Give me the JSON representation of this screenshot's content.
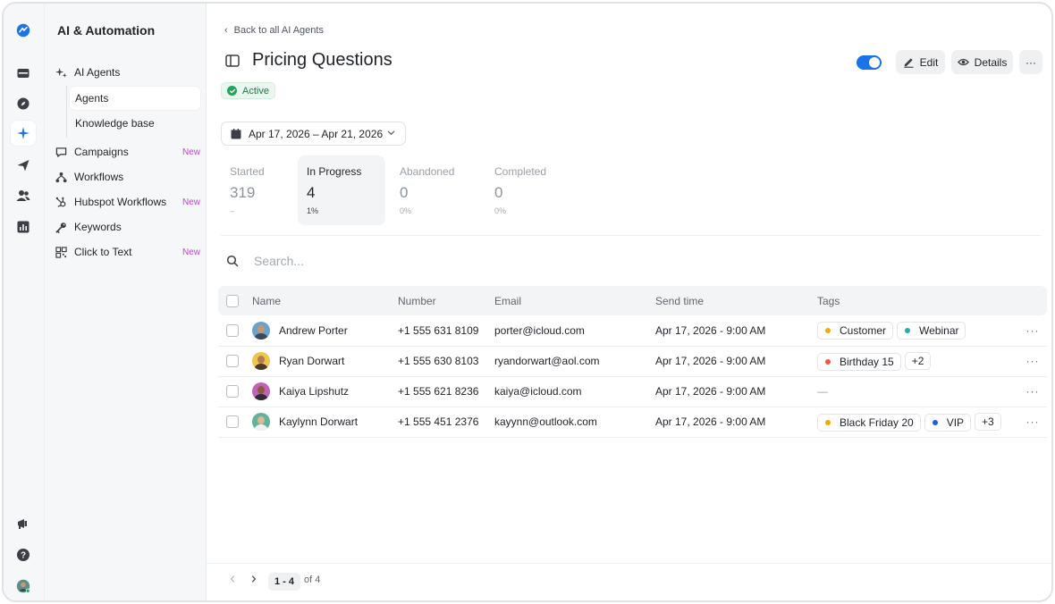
{
  "rail": {
    "items": [
      "logo",
      "inbox",
      "explore",
      "ai-automation",
      "campaigns",
      "contacts",
      "analytics"
    ],
    "bottom": [
      "announcements",
      "help",
      "profile"
    ]
  },
  "nav": {
    "title": "AI & Automation",
    "items": [
      {
        "label": "AI Agents"
      },
      {
        "label": "Agents"
      },
      {
        "label": "Knowledge base"
      },
      {
        "label": "Campaigns",
        "badge": "New"
      },
      {
        "label": "Workflows"
      },
      {
        "label": "Hubspot Workflows",
        "badge": "New"
      },
      {
        "label": "Keywords"
      },
      {
        "label": "Click to Text",
        "badge": "New"
      }
    ]
  },
  "header": {
    "back": "Back to all AI Agents",
    "title": "Pricing Questions",
    "status": "Active",
    "edit": "Edit",
    "details": "Details",
    "more": "···"
  },
  "filter": {
    "date_range": "Apr 17, 2026 – Apr 21, 2026"
  },
  "stats": [
    {
      "label": "Started",
      "value": "319",
      "sub": "–"
    },
    {
      "label": "In Progress",
      "value": "4",
      "sub": "1%"
    },
    {
      "label": "Abandoned",
      "value": "0",
      "sub": "0%"
    },
    {
      "label": "Completed",
      "value": "0",
      "sub": "0%"
    }
  ],
  "search": {
    "placeholder": "Search..."
  },
  "table": {
    "columns": [
      "Name",
      "Number",
      "Email",
      "Send time",
      "Tags"
    ],
    "rows": [
      {
        "name": "Andrew Porter",
        "number": "+1 555 631 8109",
        "email": "porter@icloud.com",
        "send_time": "Apr 17, 2026 - 9:00 AM",
        "tags": [
          {
            "label": "Customer",
            "color": "#f2a900"
          },
          {
            "label": "Webinar",
            "color": "#20b2aa"
          }
        ],
        "extra": ""
      },
      {
        "name": "Ryan Dorwart",
        "number": "+1 555 630 8103",
        "email": "ryandorwart@aol.com",
        "send_time": "Apr 17, 2026 - 9:00 AM",
        "tags": [
          {
            "label": "Birthday 15",
            "color": "#f0573b"
          }
        ],
        "extra": "+2"
      },
      {
        "name": "Kaiya Lipshutz",
        "number": "+1 555 621 8236",
        "email": "kaiya@icloud.com",
        "send_time": "Apr 17, 2026 - 9:00 AM",
        "tags": [],
        "extra": "—"
      },
      {
        "name": "Kaylynn Dorwart",
        "number": "+1 555 451 2376",
        "email": "kayynn@outlook.com",
        "send_time": "Apr 17, 2026 - 9:00 AM",
        "tags": [
          {
            "label": "Black Friday 20",
            "color": "#f2a900"
          },
          {
            "label": "VIP",
            "color": "#1a5fe8"
          }
        ],
        "extra": "+3"
      }
    ],
    "row_more": "···"
  },
  "pagination": {
    "range": "1 - 4",
    "total": "of 4"
  },
  "colors": {
    "accent": "#1a73e8",
    "active_green": "#23a559",
    "new_badge": "#c03fd1"
  }
}
